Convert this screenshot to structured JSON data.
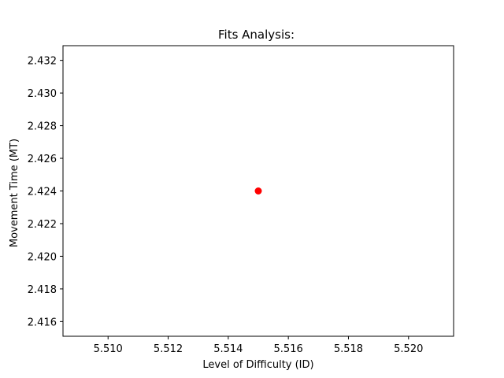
{
  "chart_data": {
    "type": "scatter",
    "title": "Fits Analysis:",
    "xlabel": "Level of Difficulty (ID)",
    "ylabel": "Movement Time (MT)",
    "xlim": [
      5.5085,
      5.5215
    ],
    "ylim": [
      2.4151,
      2.4329
    ],
    "xticks": [
      5.51,
      5.512,
      5.514,
      5.516,
      5.518,
      5.52
    ],
    "xtick_labels": [
      "5.510",
      "5.512",
      "5.514",
      "5.516",
      "5.518",
      "5.520"
    ],
    "yticks": [
      2.416,
      2.418,
      2.42,
      2.422,
      2.424,
      2.426,
      2.428,
      2.43,
      2.432
    ],
    "ytick_labels": [
      "2.416",
      "2.418",
      "2.420",
      "2.422",
      "2.424",
      "2.426",
      "2.428",
      "2.430",
      "2.432"
    ],
    "grid": false,
    "points": [
      {
        "x": 5.515,
        "y": 2.424
      }
    ],
    "marker_color": "#ff0000"
  }
}
